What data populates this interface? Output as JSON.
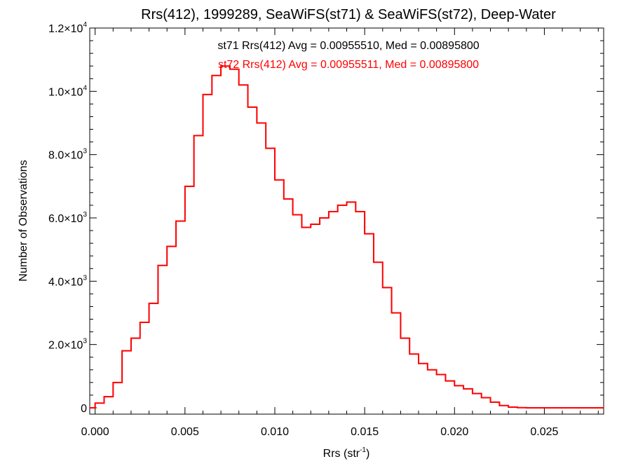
{
  "chart_data": {
    "type": "line",
    "title": "Rrs(412), 1999289, SeaWiFS(st71) & SeaWiFS(st72), Deep-Water",
    "xlabel": "Rrs (str",
    "xlabel_sup": "-1",
    "xlabel_suffix": ")",
    "ylabel": "Number of Observations",
    "xlim": [
      -0.0003,
      0.0283
    ],
    "ylim": [
      -200,
      12000
    ],
    "grid": false,
    "x_ticks": [
      {
        "value": 0.0,
        "label": "0.000"
      },
      {
        "value": 0.005,
        "label": "0.005"
      },
      {
        "value": 0.01,
        "label": "0.010"
      },
      {
        "value": 0.015,
        "label": "0.015"
      },
      {
        "value": 0.02,
        "label": "0.020"
      },
      {
        "value": 0.025,
        "label": "0.025"
      }
    ],
    "y_ticks": [
      {
        "value": 0,
        "mantissa": "0",
        "exp": ""
      },
      {
        "value": 2000,
        "mantissa": "2.0×10",
        "exp": "3"
      },
      {
        "value": 4000,
        "mantissa": "4.0×10",
        "exp": "3"
      },
      {
        "value": 6000,
        "mantissa": "6.0×10",
        "exp": "3"
      },
      {
        "value": 8000,
        "mantissa": "8.0×10",
        "exp": "3"
      },
      {
        "value": 10000,
        "mantissa": "1.0×10",
        "exp": "4"
      },
      {
        "value": 12000,
        "mantissa": "1.2×10",
        "exp": "4"
      }
    ],
    "annotations": [
      {
        "text": "st71 Rrs(412) Avg = 0.00955510, Med = 0.00895800",
        "color": "#000000"
      },
      {
        "text": "st72 Rrs(412) Avg = 0.00955511, Med = 0.00895800",
        "color": "#ff0000"
      }
    ],
    "series": [
      {
        "name": "st71",
        "color": "#000000",
        "x": [
          -0.0003,
          0.0,
          0.0005,
          0.001,
          0.0015,
          0.002,
          0.0025,
          0.003,
          0.0035,
          0.004,
          0.0045,
          0.005,
          0.0055,
          0.006,
          0.0065,
          0.007,
          0.0075,
          0.008,
          0.0085,
          0.009,
          0.0095,
          0.01,
          0.0105,
          0.011,
          0.0115,
          0.012,
          0.0125,
          0.013,
          0.0135,
          0.014,
          0.0145,
          0.015,
          0.0155,
          0.016,
          0.0165,
          0.017,
          0.0175,
          0.018,
          0.0185,
          0.019,
          0.0195,
          0.02,
          0.0205,
          0.021,
          0.0215,
          0.022,
          0.0225,
          0.023,
          0.0235,
          0.024,
          0.025,
          0.026,
          0.027,
          0.028
        ],
        "values": [
          0,
          150,
          350,
          800,
          1800,
          2200,
          2700,
          3300,
          4500,
          5100,
          5900,
          7000,
          8600,
          9900,
          10500,
          10800,
          10700,
          10200,
          9500,
          9000,
          8200,
          7200,
          6600,
          6100,
          5700,
          5800,
          6000,
          6200,
          6400,
          6500,
          6200,
          5500,
          4600,
          3800,
          3000,
          2200,
          1700,
          1400,
          1200,
          1050,
          850,
          700,
          600,
          450,
          320,
          180,
          70,
          20,
          5,
          0,
          0,
          0,
          0,
          0
        ]
      },
      {
        "name": "st72",
        "color": "#ff0000",
        "x": [
          -0.0003,
          0.0,
          0.0005,
          0.001,
          0.0015,
          0.002,
          0.0025,
          0.003,
          0.0035,
          0.004,
          0.0045,
          0.005,
          0.0055,
          0.006,
          0.0065,
          0.007,
          0.0075,
          0.008,
          0.0085,
          0.009,
          0.0095,
          0.01,
          0.0105,
          0.011,
          0.0115,
          0.012,
          0.0125,
          0.013,
          0.0135,
          0.014,
          0.0145,
          0.015,
          0.0155,
          0.016,
          0.0165,
          0.017,
          0.0175,
          0.018,
          0.0185,
          0.019,
          0.0195,
          0.02,
          0.0205,
          0.021,
          0.0215,
          0.022,
          0.0225,
          0.023,
          0.0235,
          0.024,
          0.025,
          0.026,
          0.027,
          0.028
        ],
        "values": [
          0,
          150,
          350,
          800,
          1800,
          2200,
          2700,
          3300,
          4500,
          5100,
          5900,
          7000,
          8600,
          9900,
          10500,
          10800,
          10700,
          10200,
          9500,
          9000,
          8200,
          7200,
          6600,
          6100,
          5700,
          5800,
          6000,
          6200,
          6400,
          6500,
          6200,
          5500,
          4600,
          3800,
          3000,
          2200,
          1700,
          1400,
          1200,
          1050,
          850,
          700,
          600,
          450,
          320,
          180,
          70,
          20,
          5,
          0,
          0,
          0,
          0,
          0
        ]
      }
    ]
  }
}
